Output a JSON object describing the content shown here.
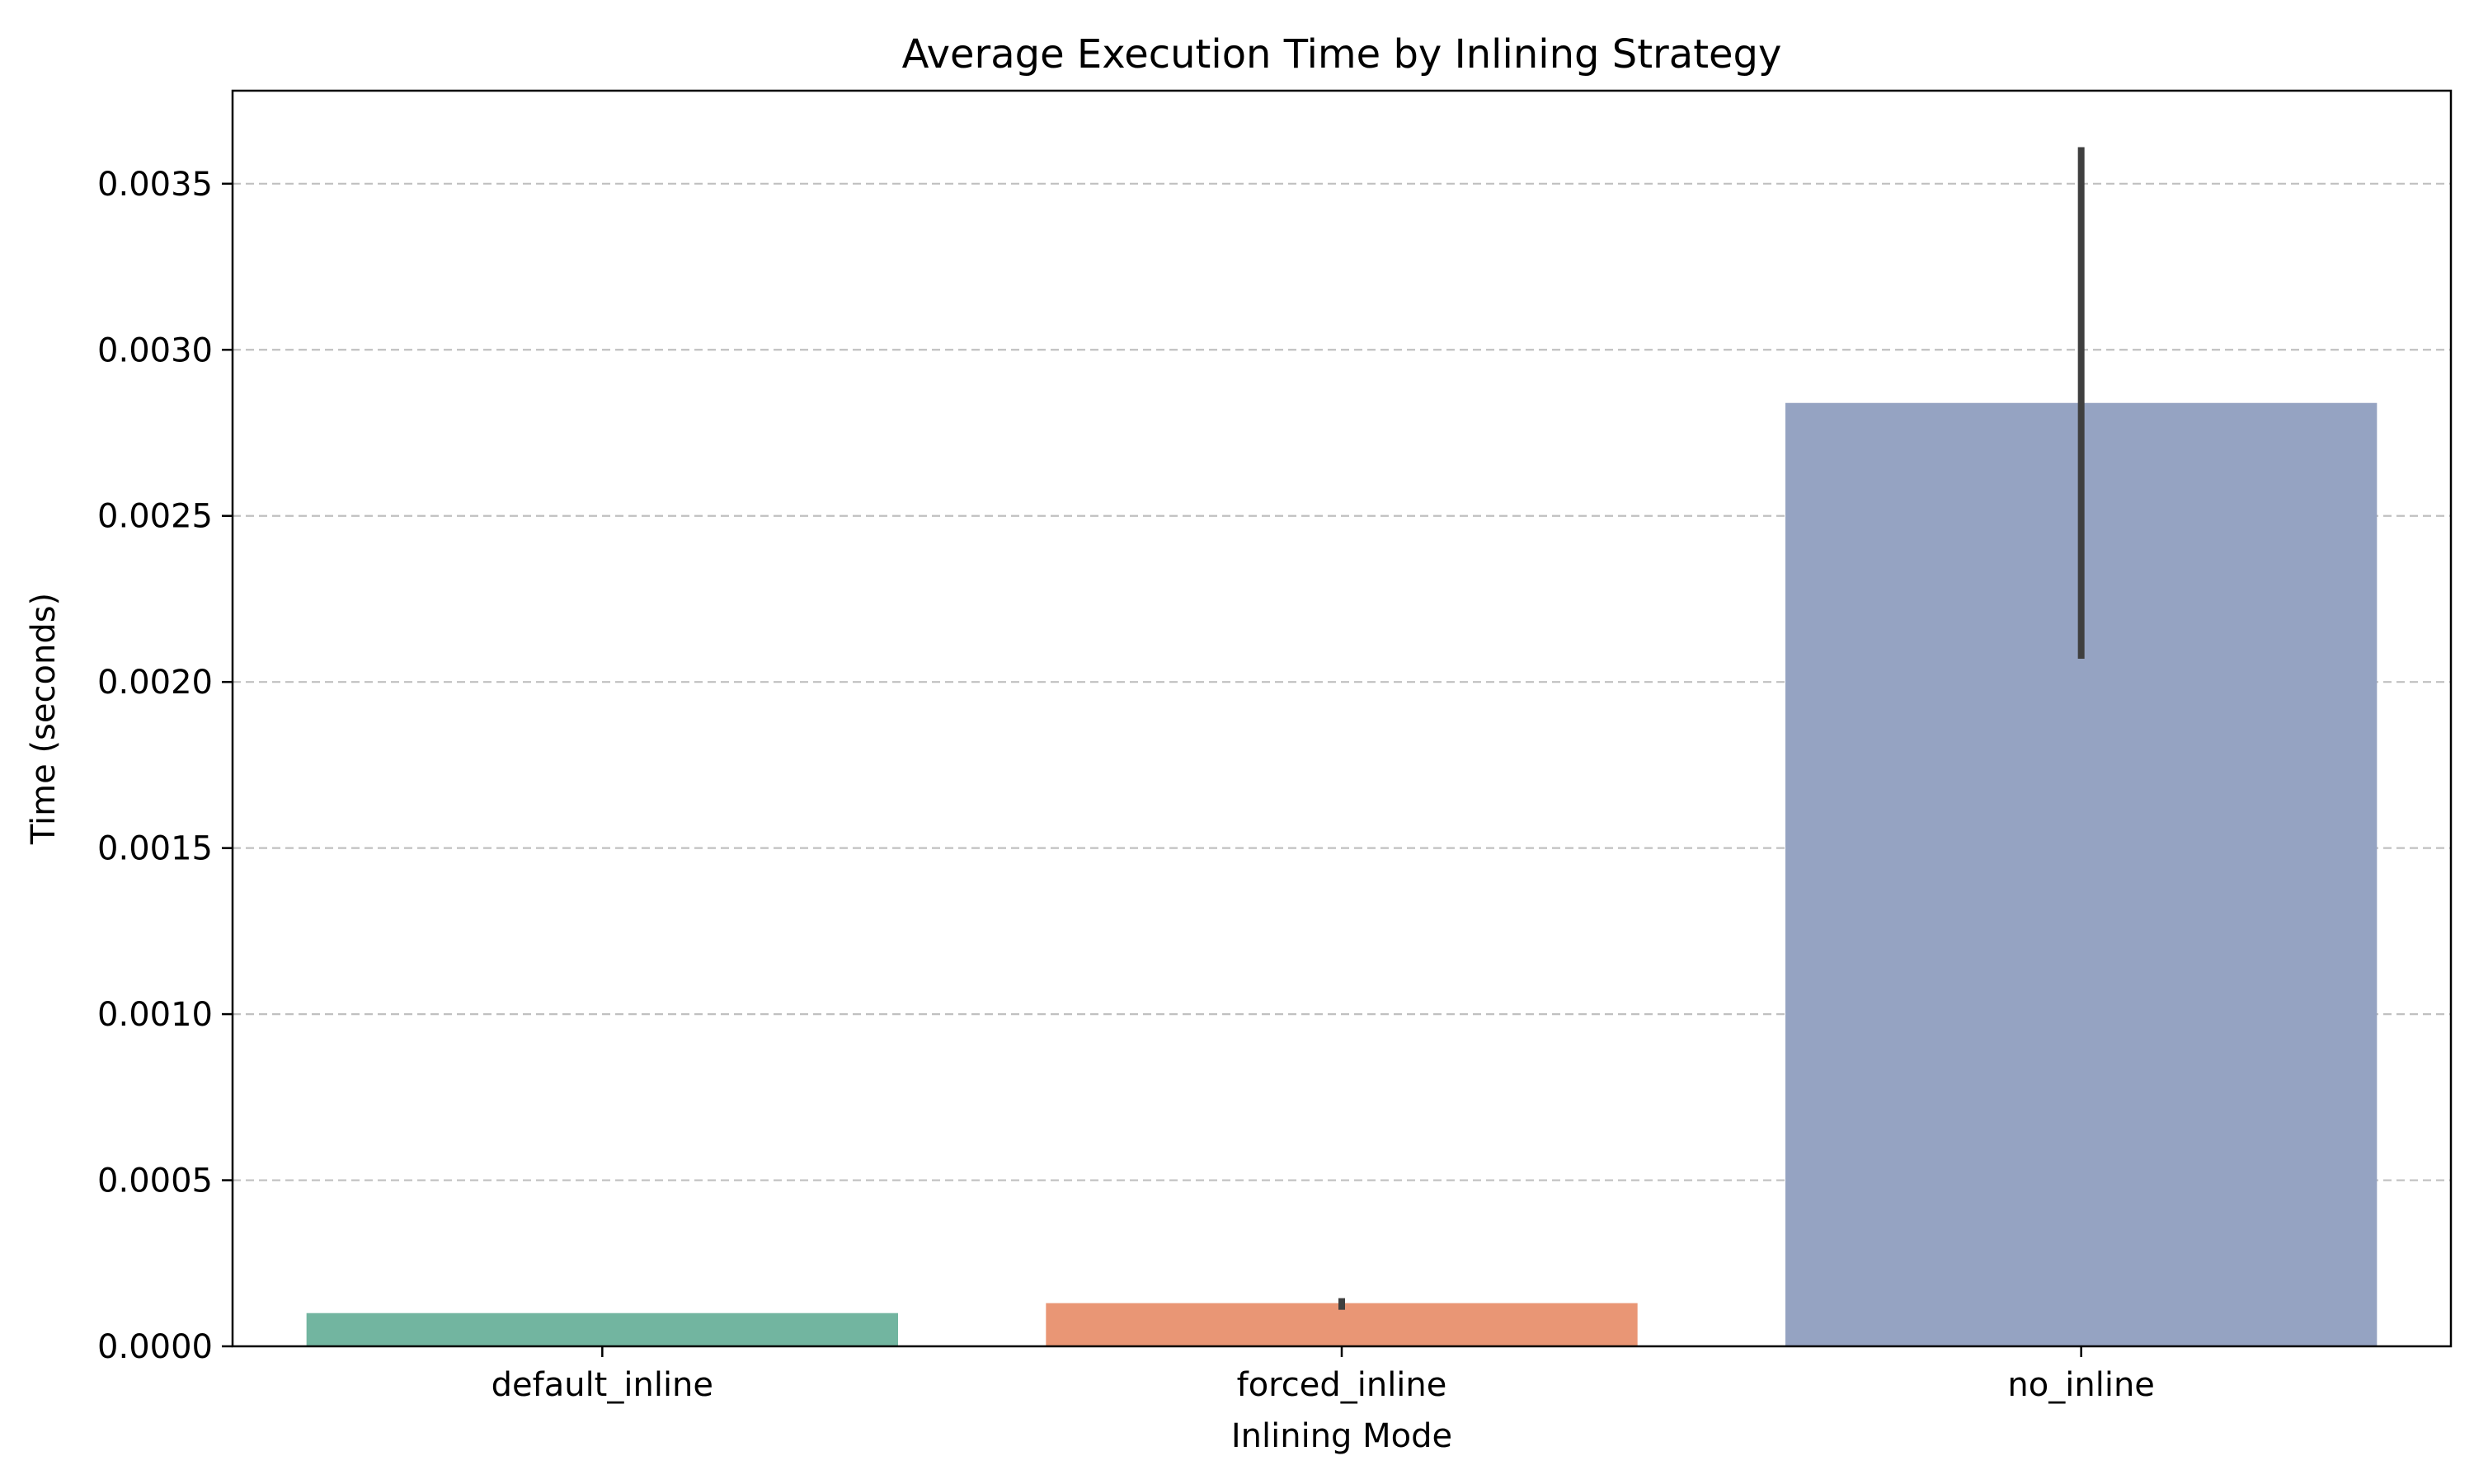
{
  "chart_data": {
    "type": "bar",
    "title": "Average Execution Time by Inlining Strategy",
    "xlabel": "Inlining Mode",
    "ylabel": "Time (seconds)",
    "categories": [
      "default_inline",
      "forced_inline",
      "no_inline"
    ],
    "values": [
      0.0001,
      0.00013,
      0.00284
    ],
    "error_bars": [
      {
        "low": 0.0001,
        "high": 0.0001
      },
      {
        "low": 0.00011,
        "high": 0.000145
      },
      {
        "low": 0.00207,
        "high": 0.00361
      }
    ],
    "colors": [
      "#72b5a0",
      "#e99675",
      "#95a3c2"
    ],
    "error_color": "#3f3f3f",
    "ylim": [
      0,
      0.00378
    ],
    "yticks": [
      0.0,
      0.0005,
      0.001,
      0.0015,
      0.002,
      0.0025,
      0.003,
      0.0035
    ],
    "ytick_labels": [
      "0.0000",
      "0.0005",
      "0.0010",
      "0.0015",
      "0.0020",
      "0.0025",
      "0.0030",
      "0.0035"
    ],
    "grid": "y-dashed",
    "grid_color": "#c0c0c0"
  }
}
